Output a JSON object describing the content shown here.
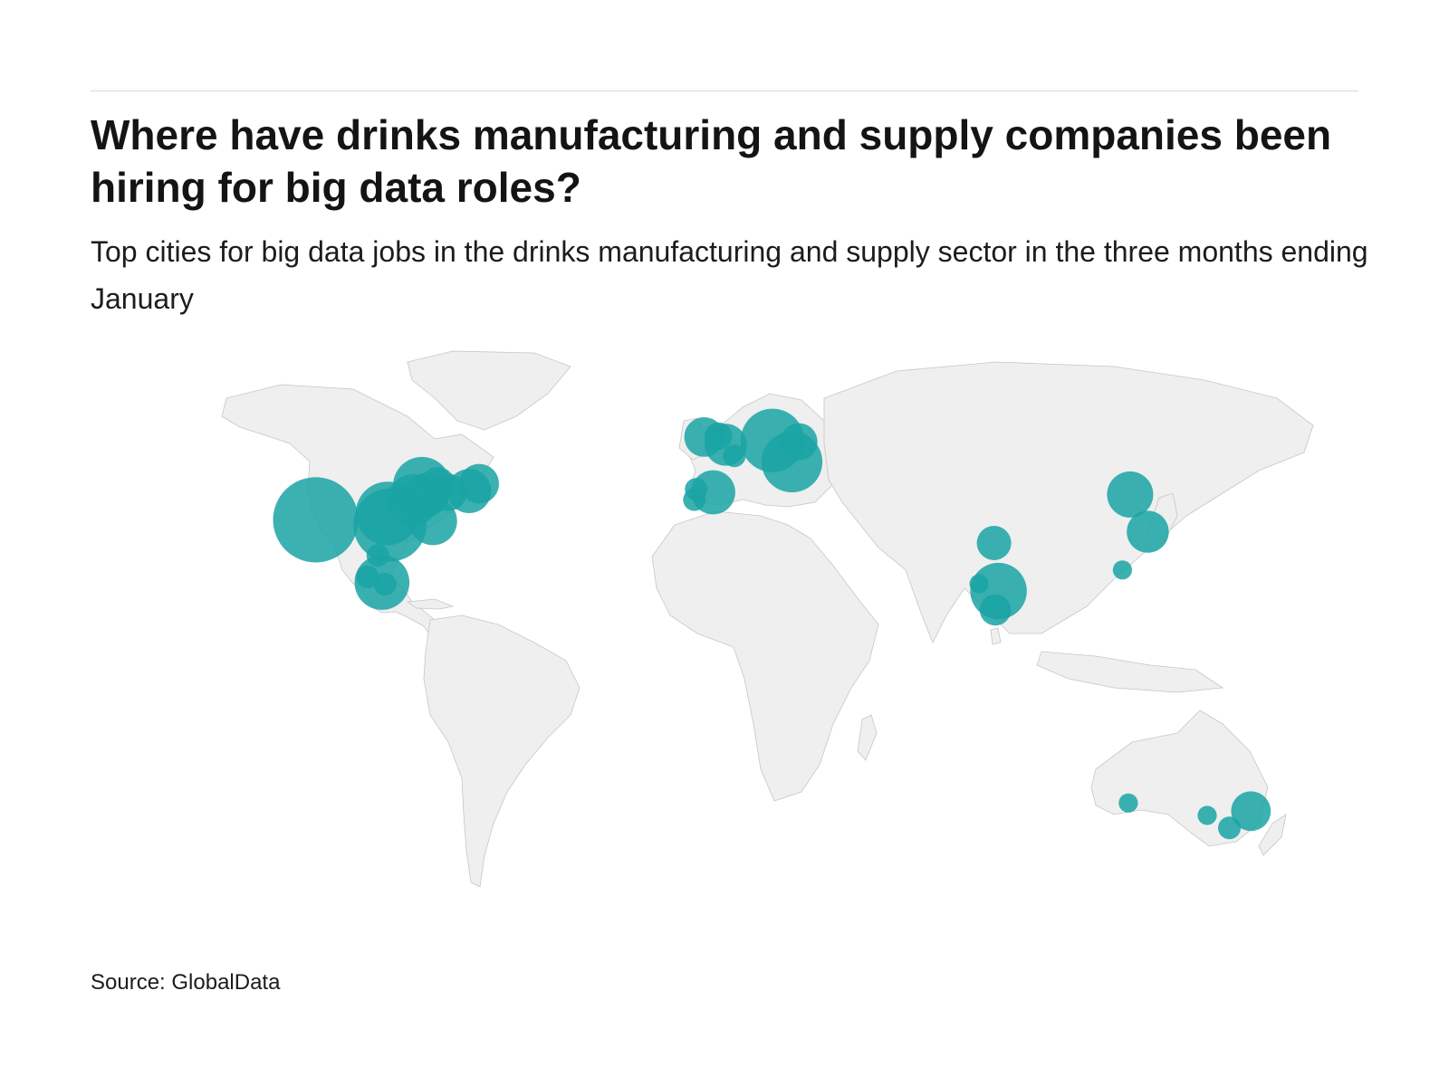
{
  "header": {
    "title": "Where have drinks manufacturing and supply companies been hiring for big data roles?",
    "subtitle": "Top cities for big data jobs in the drinks manufacturing and supply sector in the three months ending January"
  },
  "footer": {
    "source": "Source: GlobalData"
  },
  "colors": {
    "bubble": "#1aa3a3",
    "land": "#efefef",
    "border": "#c6c6c6"
  },
  "map": {
    "type": "world-bubble-map",
    "cities": [
      {
        "name": "Los Angeles",
        "lon": -118.2,
        "lat": 34.0,
        "value": 40
      },
      {
        "name": "Dallas",
        "lon": -96.8,
        "lat": 32.8,
        "value": 28
      },
      {
        "name": "Oklahoma City",
        "lon": -97.5,
        "lat": 35.5,
        "value": 20
      },
      {
        "name": "St. Louis",
        "lon": -90.2,
        "lat": 38.6,
        "value": 12
      },
      {
        "name": "Chicago",
        "lon": -87.6,
        "lat": 41.9,
        "value": 16
      },
      {
        "name": "Indianapolis",
        "lon": -86.2,
        "lat": 39.8,
        "value": 8
      },
      {
        "name": "Detroit",
        "lon": -83.0,
        "lat": 42.3,
        "value": 4
      },
      {
        "name": "Atlanta",
        "lon": -84.4,
        "lat": 33.7,
        "value": 10
      },
      {
        "name": "Pittsburgh",
        "lon": -80.0,
        "lat": 40.4,
        "value": 5
      },
      {
        "name": "New York",
        "lon": -74.0,
        "lat": 40.7,
        "value": 8
      },
      {
        "name": "Boston",
        "lon": -71.1,
        "lat": 42.4,
        "value": 6
      },
      {
        "name": "Guadalajara",
        "lon": -103.3,
        "lat": 20.7,
        "value": 1
      },
      {
        "name": "Mexico City",
        "lon": -99.1,
        "lat": 19.4,
        "value": 14
      },
      {
        "name": "Puebla",
        "lon": -98.2,
        "lat": 19.0,
        "value": 1
      },
      {
        "name": "Monterrey",
        "lon": -100.3,
        "lat": 25.7,
        "value": 1
      },
      {
        "name": "Dublin",
        "lon": -6.3,
        "lat": 53.3,
        "value": 6
      },
      {
        "name": "Manchester",
        "lon": -2.2,
        "lat": 53.5,
        "value": 2
      },
      {
        "name": "London",
        "lon": -0.1,
        "lat": 51.5,
        "value": 7
      },
      {
        "name": "Paris",
        "lon": 2.4,
        "lat": 48.9,
        "value": 1
      },
      {
        "name": "Lisbon",
        "lon": -9.1,
        "lat": 38.7,
        "value": 1
      },
      {
        "name": "Porto",
        "lon": -8.6,
        "lat": 41.1,
        "value": 1
      },
      {
        "name": "Madrid",
        "lon": -3.7,
        "lat": 40.4,
        "value": 8
      },
      {
        "name": "Berlin",
        "lon": 13.4,
        "lat": 52.5,
        "value": 20
      },
      {
        "name": "Warsaw",
        "lon": 21.0,
        "lat": 52.2,
        "value": 5
      },
      {
        "name": "Budapest",
        "lon": 19.0,
        "lat": 47.5,
        "value": 18
      },
      {
        "name": "Beijing",
        "lon": 116.4,
        "lat": 39.9,
        "value": 9
      },
      {
        "name": "Shanghai",
        "lon": 121.5,
        "lat": 31.2,
        "value": 7
      },
      {
        "name": "Hong Kong",
        "lon": 114.2,
        "lat": 22.3,
        "value": 0.5
      },
      {
        "name": "Delhi",
        "lon": 77.2,
        "lat": 28.6,
        "value": 4
      },
      {
        "name": "Mumbai",
        "lon": 72.9,
        "lat": 19.1,
        "value": 0.5
      },
      {
        "name": "Hyderabad",
        "lon": 78.5,
        "lat": 17.4,
        "value": 15
      },
      {
        "name": "Bangalore",
        "lon": 77.6,
        "lat": 13.0,
        "value": 3
      },
      {
        "name": "Perth",
        "lon": 115.9,
        "lat": -32.0,
        "value": 0.5
      },
      {
        "name": "Adelaide",
        "lon": 138.6,
        "lat": -34.9,
        "value": 0.5
      },
      {
        "name": "Melbourne",
        "lon": 145.0,
        "lat": -37.8,
        "value": 1
      },
      {
        "name": "Sydney",
        "lon": 151.2,
        "lat": -33.9,
        "value": 6
      }
    ]
  }
}
